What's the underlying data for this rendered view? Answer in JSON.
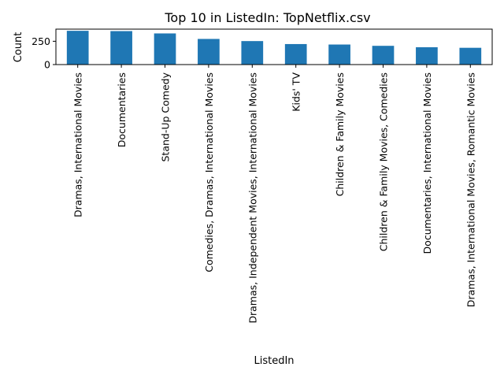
{
  "chart_data": {
    "type": "bar",
    "title": "Top 10 in ListedIn: TopNetflix.csv",
    "xlabel": "ListedIn",
    "ylabel": "Count",
    "categories": [
      "Dramas, International Movies",
      "Documentaries",
      "Stand-Up Comedy",
      "Comedies, Dramas, International Movies",
      "Dramas, Independent Movies, International Movies",
      "Kids' TV",
      "Children & Family Movies",
      "Children & Family Movies, Comedies",
      "Documentaries, International Movies",
      "Dramas, International Movies, Romantic Movies"
    ],
    "values": [
      362,
      359,
      334,
      275,
      252,
      220,
      215,
      201,
      186,
      180
    ],
    "ylim": [
      0,
      380
    ],
    "yticks": [
      0,
      250
    ],
    "grid": false,
    "bar_color": "#1f77b4"
  }
}
